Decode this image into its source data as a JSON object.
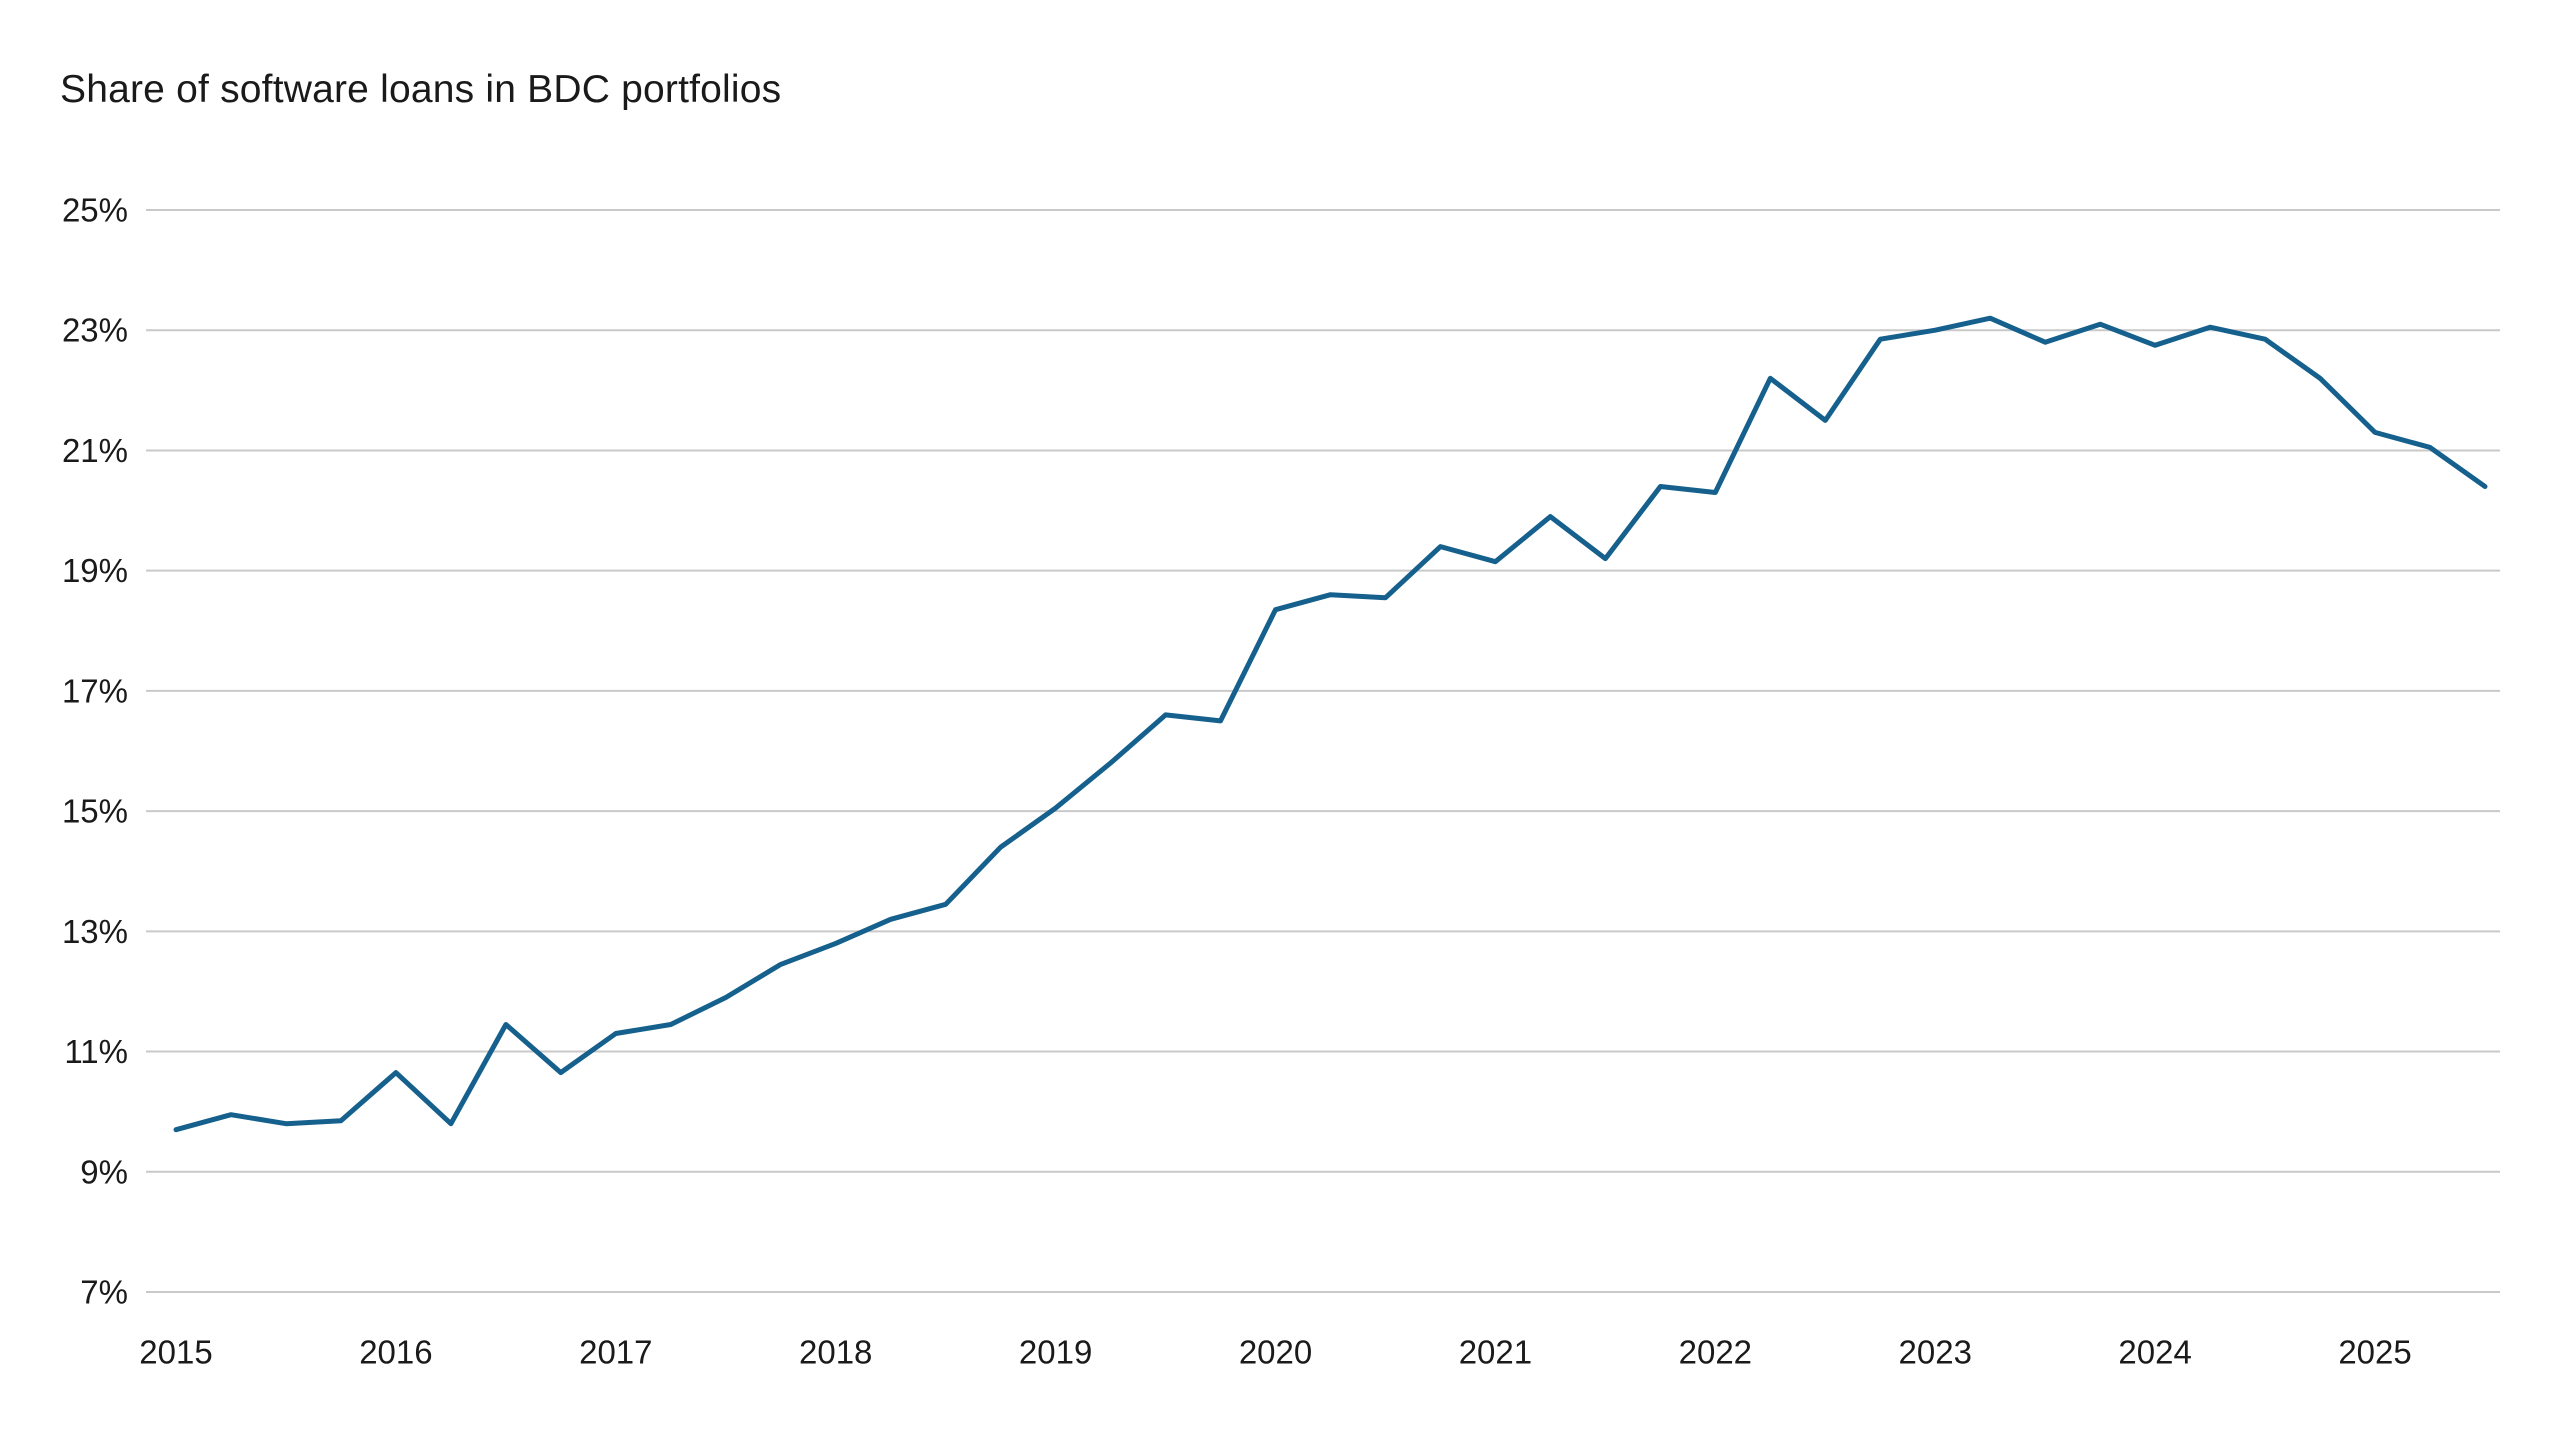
{
  "page": {
    "background_color": "#ffffff",
    "text_color": "#1a1a1a"
  },
  "chart_data": {
    "type": "line",
    "title": "Share of software loans in BDC portfolios",
    "xlabel": "",
    "ylabel": "",
    "ylim": [
      7,
      25
    ],
    "grid": "horizontal",
    "legend": "none",
    "grid_color": "#c9c9c9",
    "line_color": "#15608D",
    "axis_text_color": "#1a1a1a",
    "y_tick_values": [
      7,
      9,
      11,
      13,
      15,
      17,
      19,
      21,
      23,
      25
    ],
    "y_tick_labels": [
      "7%",
      "9%",
      "11%",
      "13%",
      "15%",
      "17%",
      "19%",
      "21%",
      "23%",
      "25%"
    ],
    "x_axis_years": [
      "2015",
      "2016",
      "2017",
      "2018",
      "2019",
      "2020",
      "2021",
      "2022",
      "2023",
      "2024",
      "2025"
    ],
    "x": [
      "2015 Q1",
      "2015 Q2",
      "2015 Q3",
      "2015 Q4",
      "2016 Q1",
      "2016 Q2",
      "2016 Q3",
      "2016 Q4",
      "2017 Q1",
      "2017 Q2",
      "2017 Q3",
      "2017 Q4",
      "2018 Q1",
      "2018 Q2",
      "2018 Q3",
      "2018 Q4",
      "2019 Q1",
      "2019 Q2",
      "2019 Q3",
      "2019 Q4",
      "2020 Q1",
      "2020 Q2",
      "2020 Q3",
      "2020 Q4",
      "2021 Q1",
      "2021 Q2",
      "2021 Q3",
      "2021 Q4",
      "2022 Q1",
      "2022 Q2",
      "2022 Q3",
      "2022 Q4",
      "2023 Q1",
      "2023 Q2",
      "2023 Q3",
      "2023 Q4",
      "2024 Q1",
      "2024 Q2",
      "2024 Q3",
      "2024 Q4",
      "2025 Q1",
      "2025 Q2",
      "2025 Q3"
    ],
    "series": [
      {
        "name": "Share of software loans in BDC portfolios",
        "values": [
          9.7,
          9.95,
          9.8,
          9.85,
          10.65,
          9.8,
          11.45,
          10.65,
          11.3,
          11.45,
          11.9,
          12.45,
          12.8,
          13.2,
          13.45,
          14.4,
          15.05,
          15.8,
          16.6,
          16.5,
          18.35,
          18.6,
          18.55,
          19.4,
          19.15,
          19.9,
          19.2,
          20.4,
          20.3,
          22.2,
          21.5,
          22.85,
          23.0,
          23.2,
          22.8,
          23.1,
          22.75,
          23.05,
          22.85,
          22.2,
          21.3,
          21.05,
          20.4
        ]
      }
    ]
  }
}
